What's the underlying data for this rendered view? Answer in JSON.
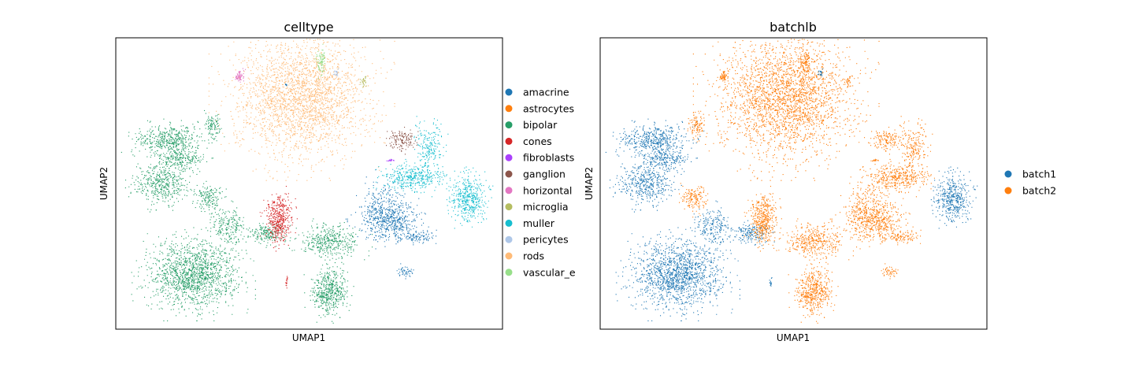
{
  "chart_data": [
    {
      "type": "scatter",
      "title": "celltype",
      "xlabel": "UMAP1",
      "ylabel": "UMAP2",
      "grid": false,
      "legend_placement": "right, outside",
      "legend": [
        {
          "name": "amacrine",
          "color": "#1f77b4"
        },
        {
          "name": "astrocytes",
          "color": "#ff7f0e"
        },
        {
          "name": "bipolar",
          "color": "#279e68"
        },
        {
          "name": "cones",
          "color": "#d62728"
        },
        {
          "name": "fibroblasts",
          "color": "#aa40fc"
        },
        {
          "name": "ganglion",
          "color": "#8c564b"
        },
        {
          "name": "horizontal",
          "color": "#e377c2"
        },
        {
          "name": "microglia",
          "color": "#b5bd61"
        },
        {
          "name": "muller",
          "color": "#17becf"
        },
        {
          "name": "pericytes",
          "color": "#aec7e8"
        },
        {
          "name": "rods",
          "color": "#ffbb78"
        },
        {
          "name": "vascular_e",
          "color": "#98df8a"
        }
      ],
      "clusters": [
        {
          "label": "rods",
          "x": 0.48,
          "y": 0.8,
          "rx": 0.15,
          "ry": 0.18,
          "n": 2600
        },
        {
          "label": "bipolar",
          "x": 0.2,
          "y": 0.19,
          "rx": 0.1,
          "ry": 0.1,
          "n": 1500
        },
        {
          "label": "bipolar",
          "x": 0.14,
          "y": 0.65,
          "rx": 0.08,
          "ry": 0.05,
          "n": 500
        },
        {
          "label": "bipolar",
          "x": 0.12,
          "y": 0.5,
          "rx": 0.06,
          "ry": 0.06,
          "n": 450
        },
        {
          "label": "bipolar",
          "x": 0.17,
          "y": 0.58,
          "rx": 0.05,
          "ry": 0.03,
          "n": 200
        },
        {
          "label": "bipolar",
          "x": 0.29,
          "y": 0.35,
          "rx": 0.04,
          "ry": 0.06,
          "n": 220
        },
        {
          "label": "bipolar",
          "x": 0.24,
          "y": 0.45,
          "rx": 0.03,
          "ry": 0.04,
          "n": 160
        },
        {
          "label": "bipolar",
          "x": 0.25,
          "y": 0.7,
          "rx": 0.02,
          "ry": 0.04,
          "n": 100
        },
        {
          "label": "bipolar",
          "x": 0.39,
          "y": 0.33,
          "rx": 0.04,
          "ry": 0.03,
          "n": 180
        },
        {
          "label": "bipolar",
          "x": 0.55,
          "y": 0.3,
          "rx": 0.07,
          "ry": 0.05,
          "n": 400
        },
        {
          "label": "bipolar",
          "x": 0.55,
          "y": 0.13,
          "rx": 0.04,
          "ry": 0.07,
          "n": 500
        },
        {
          "label": "amacrine",
          "x": 0.71,
          "y": 0.37,
          "rx": 0.07,
          "ry": 0.06,
          "n": 450
        },
        {
          "label": "amacrine",
          "x": 0.69,
          "y": 0.42,
          "rx": 0.06,
          "ry": 0.08,
          "n": 250
        },
        {
          "label": "amacrine",
          "x": 0.78,
          "y": 0.32,
          "rx": 0.04,
          "ry": 0.02,
          "n": 100
        },
        {
          "label": "amacrine",
          "x": 0.75,
          "y": 0.2,
          "rx": 0.02,
          "ry": 0.02,
          "n": 50
        },
        {
          "label": "cones",
          "x": 0.42,
          "y": 0.38,
          "rx": 0.03,
          "ry": 0.07,
          "n": 450
        },
        {
          "label": "muller",
          "x": 0.91,
          "y": 0.45,
          "rx": 0.04,
          "ry": 0.07,
          "n": 450
        },
        {
          "label": "muller",
          "x": 0.77,
          "y": 0.52,
          "rx": 0.07,
          "ry": 0.04,
          "n": 400
        },
        {
          "label": "muller",
          "x": 0.81,
          "y": 0.63,
          "rx": 0.03,
          "ry": 0.07,
          "n": 200
        },
        {
          "label": "ganglion",
          "x": 0.74,
          "y": 0.65,
          "rx": 0.03,
          "ry": 0.03,
          "n": 140
        },
        {
          "label": "fibroblasts",
          "x": 0.71,
          "y": 0.58,
          "rx": 0.01,
          "ry": 0.003,
          "n": 20
        },
        {
          "label": "horizontal",
          "x": 0.32,
          "y": 0.87,
          "rx": 0.01,
          "ry": 0.02,
          "n": 70
        },
        {
          "label": "vascular_e",
          "x": 0.53,
          "y": 0.92,
          "rx": 0.01,
          "ry": 0.04,
          "n": 90
        },
        {
          "label": "microglia",
          "x": 0.64,
          "y": 0.85,
          "rx": 0.008,
          "ry": 0.015,
          "n": 30
        },
        {
          "label": "pericytes",
          "x": 0.57,
          "y": 0.88,
          "rx": 0.005,
          "ry": 0.01,
          "n": 20
        },
        {
          "label": "amacrine",
          "x": 0.44,
          "y": 0.84,
          "rx": 0.002,
          "ry": 0.004,
          "n": 8
        },
        {
          "label": "cones",
          "x": 0.44,
          "y": 0.16,
          "rx": 0.003,
          "ry": 0.015,
          "n": 15
        }
      ]
    },
    {
      "type": "scatter",
      "title": "batchlb",
      "xlabel": "UMAP1",
      "ylabel": "UMAP2",
      "grid": false,
      "legend_placement": "right, outside",
      "legend": [
        {
          "name": "batch1",
          "color": "#1f77b4"
        },
        {
          "name": "batch2",
          "color": "#ff7f0e"
        }
      ],
      "clusters": [
        {
          "label": "batch2",
          "x": 0.48,
          "y": 0.8,
          "rx": 0.15,
          "ry": 0.18,
          "n": 2600
        },
        {
          "label": "batch1",
          "x": 0.2,
          "y": 0.19,
          "rx": 0.1,
          "ry": 0.1,
          "n": 1500
        },
        {
          "label": "batch1",
          "x": 0.14,
          "y": 0.65,
          "rx": 0.08,
          "ry": 0.05,
          "n": 500
        },
        {
          "label": "batch1",
          "x": 0.12,
          "y": 0.5,
          "rx": 0.06,
          "ry": 0.06,
          "n": 450
        },
        {
          "label": "batch1",
          "x": 0.17,
          "y": 0.58,
          "rx": 0.05,
          "ry": 0.03,
          "n": 200
        },
        {
          "label": "batch1",
          "x": 0.29,
          "y": 0.35,
          "rx": 0.04,
          "ry": 0.06,
          "n": 220
        },
        {
          "label": "batch1",
          "x": 0.39,
          "y": 0.33,
          "rx": 0.04,
          "ry": 0.03,
          "n": 180
        },
        {
          "label": "batch2",
          "x": 0.24,
          "y": 0.45,
          "rx": 0.03,
          "ry": 0.04,
          "n": 160
        },
        {
          "label": "batch2",
          "x": 0.25,
          "y": 0.7,
          "rx": 0.02,
          "ry": 0.04,
          "n": 100
        },
        {
          "label": "batch2",
          "x": 0.55,
          "y": 0.3,
          "rx": 0.07,
          "ry": 0.05,
          "n": 400
        },
        {
          "label": "batch2",
          "x": 0.55,
          "y": 0.13,
          "rx": 0.04,
          "ry": 0.07,
          "n": 500
        },
        {
          "label": "batch2",
          "x": 0.71,
          "y": 0.37,
          "rx": 0.07,
          "ry": 0.06,
          "n": 450
        },
        {
          "label": "batch2",
          "x": 0.69,
          "y": 0.42,
          "rx": 0.06,
          "ry": 0.08,
          "n": 250
        },
        {
          "label": "batch2",
          "x": 0.78,
          "y": 0.32,
          "rx": 0.04,
          "ry": 0.02,
          "n": 100
        },
        {
          "label": "batch2",
          "x": 0.75,
          "y": 0.2,
          "rx": 0.02,
          "ry": 0.02,
          "n": 50
        },
        {
          "label": "batch2",
          "x": 0.42,
          "y": 0.38,
          "rx": 0.03,
          "ry": 0.07,
          "n": 450
        },
        {
          "label": "batch1",
          "x": 0.91,
          "y": 0.45,
          "rx": 0.04,
          "ry": 0.07,
          "n": 450
        },
        {
          "label": "batch2",
          "x": 0.77,
          "y": 0.52,
          "rx": 0.07,
          "ry": 0.04,
          "n": 400
        },
        {
          "label": "batch2",
          "x": 0.81,
          "y": 0.63,
          "rx": 0.03,
          "ry": 0.07,
          "n": 200
        },
        {
          "label": "batch2",
          "x": 0.74,
          "y": 0.65,
          "rx": 0.03,
          "ry": 0.03,
          "n": 140
        },
        {
          "label": "batch2",
          "x": 0.71,
          "y": 0.58,
          "rx": 0.01,
          "ry": 0.003,
          "n": 20
        },
        {
          "label": "batch2",
          "x": 0.32,
          "y": 0.87,
          "rx": 0.01,
          "ry": 0.02,
          "n": 70
        },
        {
          "label": "batch2",
          "x": 0.53,
          "y": 0.92,
          "rx": 0.01,
          "ry": 0.04,
          "n": 90
        },
        {
          "label": "batch2",
          "x": 0.64,
          "y": 0.85,
          "rx": 0.008,
          "ry": 0.015,
          "n": 30
        },
        {
          "label": "batch1",
          "x": 0.57,
          "y": 0.88,
          "rx": 0.005,
          "ry": 0.01,
          "n": 20
        },
        {
          "label": "batch1",
          "x": 0.44,
          "y": 0.16,
          "rx": 0.003,
          "ry": 0.015,
          "n": 15
        }
      ]
    }
  ]
}
